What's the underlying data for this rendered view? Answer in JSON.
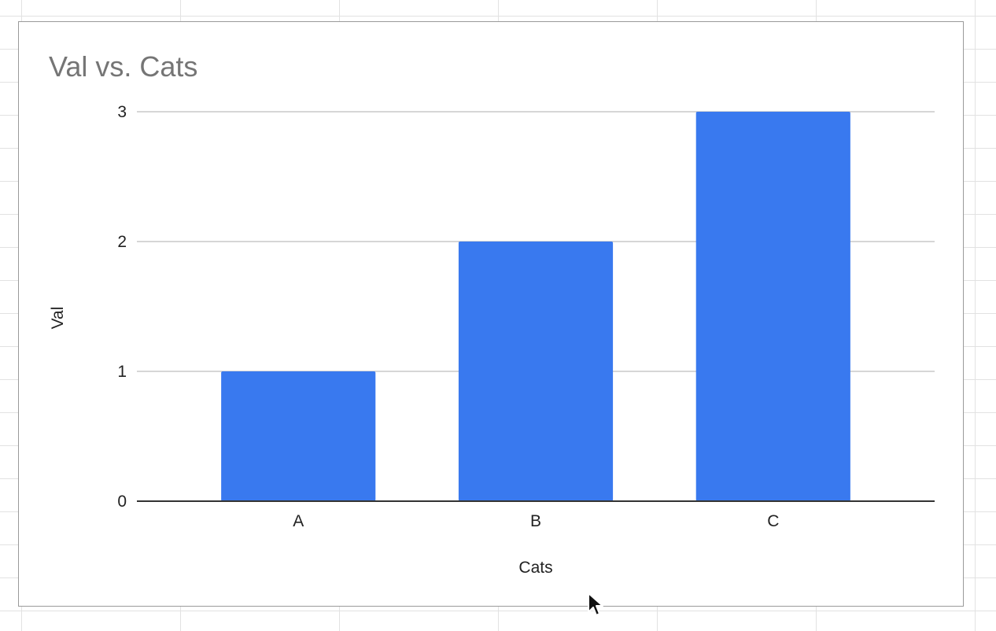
{
  "chart_data": {
    "type": "bar",
    "title": "Val vs. Cats",
    "xlabel": "Cats",
    "ylabel": "Val",
    "categories": [
      "A",
      "B",
      "C"
    ],
    "values": [
      1,
      2,
      3
    ],
    "ylim": [
      0,
      3
    ],
    "yticks": [
      0,
      1,
      2,
      3
    ],
    "grid": true,
    "bar_color": "#3979ef",
    "grid_color": "#c8c8c8",
    "baseline_color": "#333333"
  }
}
